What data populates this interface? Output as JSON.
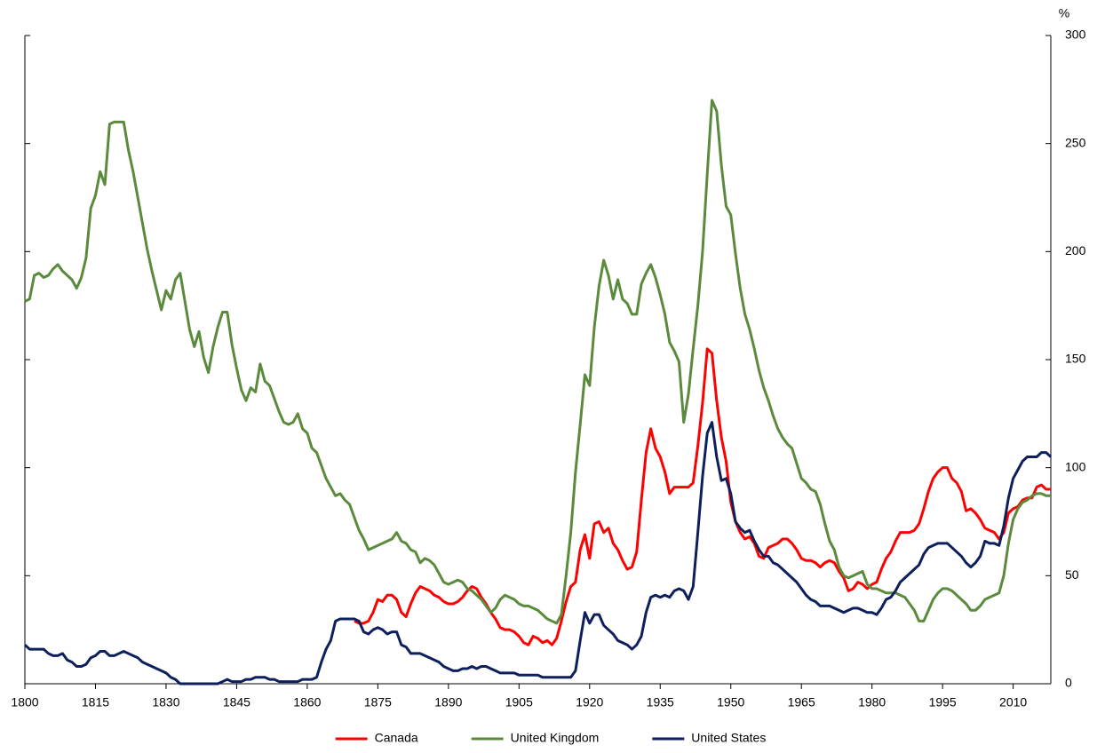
{
  "chart_data": {
    "type": "line",
    "ylabel": "%",
    "yaxis_side": "right",
    "xlim": [
      1800,
      2018
    ],
    "xticks": [
      1800,
      1815,
      1830,
      1845,
      1860,
      1875,
      1890,
      1905,
      1920,
      1935,
      1950,
      1965,
      1980,
      1995,
      2010
    ],
    "ylim": [
      0,
      300
    ],
    "yticks": [
      0,
      50,
      100,
      150,
      200,
      250,
      300
    ],
    "legend": "bottom",
    "x": [
      1800,
      1801,
      1802,
      1803,
      1804,
      1805,
      1806,
      1807,
      1808,
      1809,
      1810,
      1811,
      1812,
      1813,
      1814,
      1815,
      1816,
      1817,
      1818,
      1819,
      1820,
      1821,
      1822,
      1823,
      1824,
      1825,
      1826,
      1827,
      1828,
      1829,
      1830,
      1831,
      1832,
      1833,
      1834,
      1835,
      1836,
      1837,
      1838,
      1839,
      1840,
      1841,
      1842,
      1843,
      1844,
      1845,
      1846,
      1847,
      1848,
      1849,
      1850,
      1851,
      1852,
      1853,
      1854,
      1855,
      1856,
      1857,
      1858,
      1859,
      1860,
      1861,
      1862,
      1863,
      1864,
      1865,
      1866,
      1867,
      1868,
      1869,
      1870,
      1871,
      1872,
      1873,
      1874,
      1875,
      1876,
      1877,
      1878,
      1879,
      1880,
      1881,
      1882,
      1883,
      1884,
      1885,
      1886,
      1887,
      1888,
      1889,
      1890,
      1891,
      1892,
      1893,
      1894,
      1895,
      1896,
      1897,
      1898,
      1899,
      1900,
      1901,
      1902,
      1903,
      1904,
      1905,
      1906,
      1907,
      1908,
      1909,
      1910,
      1911,
      1912,
      1913,
      1914,
      1915,
      1916,
      1917,
      1918,
      1919,
      1920,
      1921,
      1922,
      1923,
      1924,
      1925,
      1926,
      1927,
      1928,
      1929,
      1930,
      1931,
      1932,
      1933,
      1934,
      1935,
      1936,
      1937,
      1938,
      1939,
      1940,
      1941,
      1942,
      1943,
      1944,
      1945,
      1946,
      1947,
      1948,
      1949,
      1950,
      1951,
      1952,
      1953,
      1954,
      1955,
      1956,
      1957,
      1958,
      1959,
      1960,
      1961,
      1962,
      1963,
      1964,
      1965,
      1966,
      1967,
      1968,
      1969,
      1970,
      1971,
      1972,
      1973,
      1974,
      1975,
      1976,
      1977,
      1978,
      1979,
      1980,
      1981,
      1982,
      1983,
      1984,
      1985,
      1986,
      1987,
      1988,
      1989,
      1990,
      1991,
      1992,
      1993,
      1994,
      1995,
      1996,
      1997,
      1998,
      1999,
      2000,
      2001,
      2002,
      2003,
      2004,
      2005,
      2006,
      2007,
      2008,
      2009,
      2010,
      2011,
      2012,
      2013,
      2014,
      2015,
      2016,
      2017,
      2018
    ],
    "series": [
      {
        "name": "Canada",
        "color": "#ff0000",
        "values": [
          null,
          null,
          null,
          null,
          null,
          null,
          null,
          null,
          null,
          null,
          null,
          null,
          null,
          null,
          null,
          null,
          null,
          null,
          null,
          null,
          null,
          null,
          null,
          null,
          null,
          null,
          null,
          null,
          null,
          null,
          null,
          null,
          null,
          null,
          null,
          null,
          null,
          null,
          null,
          null,
          null,
          null,
          null,
          null,
          null,
          null,
          null,
          null,
          null,
          null,
          null,
          null,
          null,
          null,
          null,
          null,
          null,
          null,
          null,
          null,
          null,
          null,
          null,
          null,
          null,
          null,
          null,
          null,
          null,
          null,
          29,
          28,
          28,
          29,
          33,
          39,
          38,
          41,
          41,
          39,
          33,
          31,
          37,
          42,
          45,
          44,
          43,
          41,
          40,
          38,
          37,
          37,
          38,
          40,
          43,
          45,
          44,
          40,
          37,
          33,
          30,
          26,
          25,
          25,
          24,
          22,
          19,
          18,
          22,
          21,
          19,
          20,
          18,
          21,
          29,
          38,
          45,
          47,
          62,
          69,
          58,
          74,
          75,
          70,
          72,
          65,
          62,
          57,
          53,
          54,
          61,
          85,
          107,
          118,
          109,
          105,
          98,
          88,
          91,
          91,
          91,
          91,
          93,
          110,
          130,
          155,
          153,
          131,
          114,
          103,
          84,
          75,
          70,
          67,
          68,
          65,
          59,
          58,
          63,
          64,
          65,
          67,
          67,
          65,
          62,
          58,
          57,
          57,
          56,
          54,
          56,
          57,
          56,
          52,
          49,
          43,
          44,
          47,
          46,
          44,
          46,
          47,
          53,
          58,
          61,
          66,
          70,
          70,
          70,
          71,
          74,
          81,
          89,
          95,
          98,
          100,
          100,
          95,
          93,
          89,
          80,
          81,
          79,
          76,
          72,
          71,
          70,
          67,
          70,
          79,
          81,
          82,
          85,
          86,
          86,
          91,
          92,
          90,
          90
        ]
      },
      {
        "name": "United Kingdom",
        "color": "#5b8a3c",
        "values": [
          177,
          178,
          189,
          190,
          188,
          189,
          192,
          194,
          191,
          189,
          187,
          183,
          188,
          197,
          220,
          226,
          237,
          231,
          259,
          260,
          260,
          260,
          247,
          237,
          225,
          213,
          201,
          191,
          182,
          173,
          182,
          178,
          187,
          190,
          177,
          164,
          156,
          163,
          151,
          144,
          156,
          165,
          172,
          172,
          157,
          146,
          136,
          131,
          137,
          135,
          148,
          140,
          138,
          132,
          126,
          121,
          120,
          121,
          125,
          118,
          116,
          109,
          107,
          101,
          95,
          91,
          87,
          88,
          85,
          83,
          77,
          71,
          67,
          62,
          63,
          64,
          65,
          66,
          67,
          70,
          66,
          65,
          62,
          61,
          56,
          58,
          57,
          55,
          51,
          47,
          46,
          47,
          48,
          47,
          44,
          43,
          41,
          39,
          36,
          33,
          35,
          39,
          41,
          40,
          39,
          37,
          36,
          36,
          35,
          34,
          32,
          30,
          29,
          28,
          32,
          50,
          70,
          98,
          120,
          143,
          138,
          165,
          184,
          196,
          189,
          178,
          187,
          178,
          176,
          171,
          171,
          185,
          190,
          194,
          188,
          180,
          171,
          158,
          154,
          149,
          121,
          134,
          155,
          175,
          200,
          236,
          270,
          265,
          240,
          221,
          217,
          199,
          183,
          171,
          164,
          155,
          145,
          137,
          131,
          124,
          118,
          114,
          111,
          109,
          102,
          95,
          93,
          90,
          89,
          83,
          74,
          66,
          62,
          54,
          50,
          49,
          50,
          51,
          52,
          46,
          44,
          44,
          43,
          42,
          42,
          42,
          41,
          40,
          37,
          34,
          29,
          29,
          34,
          39,
          42,
          44,
          44,
          43,
          41,
          39,
          37,
          34,
          34,
          36,
          39,
          40,
          41,
          42,
          50,
          65,
          76,
          81,
          84,
          85,
          87,
          88,
          88,
          87,
          87
        ]
      },
      {
        "name": "United States",
        "color": "#0d1f5c",
        "values": [
          18,
          16,
          16,
          16,
          16,
          14,
          13,
          13,
          14,
          11,
          10,
          8,
          8,
          9,
          12,
          13,
          15,
          15,
          13,
          13,
          14,
          15,
          14,
          13,
          12,
          10,
          9,
          8,
          7,
          6,
          5,
          3,
          2,
          0,
          0,
          0,
          0,
          0,
          0,
          0,
          0,
          0,
          1,
          2,
          1,
          1,
          1,
          2,
          2,
          3,
          3,
          3,
          2,
          2,
          1,
          1,
          1,
          1,
          1,
          2,
          2,
          2,
          3,
          10,
          16,
          20,
          29,
          30,
          30,
          30,
          30,
          29,
          24,
          23,
          25,
          26,
          25,
          23,
          24,
          24,
          18,
          17,
          14,
          14,
          14,
          13,
          12,
          11,
          10,
          8,
          7,
          6,
          6,
          7,
          7,
          8,
          7,
          8,
          8,
          7,
          6,
          5,
          5,
          5,
          5,
          4,
          4,
          4,
          4,
          4,
          3,
          3,
          3,
          3,
          3,
          3,
          3,
          6,
          20,
          33,
          28,
          32,
          32,
          27,
          25,
          23,
          20,
          19,
          18,
          16,
          18,
          22,
          33,
          40,
          41,
          40,
          41,
          40,
          43,
          44,
          43,
          39,
          45,
          70,
          96,
          116,
          121,
          105,
          94,
          95,
          88,
          75,
          72,
          70,
          71,
          66,
          62,
          59,
          59,
          56,
          55,
          53,
          51,
          49,
          47,
          44,
          41,
          39,
          38,
          36,
          36,
          36,
          35,
          34,
          33,
          34,
          35,
          35,
          34,
          33,
          33,
          32,
          35,
          39,
          40,
          43,
          47,
          49,
          51,
          53,
          55,
          60,
          63,
          64,
          65,
          65,
          65,
          63,
          61,
          59,
          56,
          54,
          56,
          59,
          66,
          65,
          65,
          64,
          73,
          86,
          95,
          99,
          103,
          105,
          105,
          105,
          107,
          107,
          105
        ]
      }
    ]
  }
}
